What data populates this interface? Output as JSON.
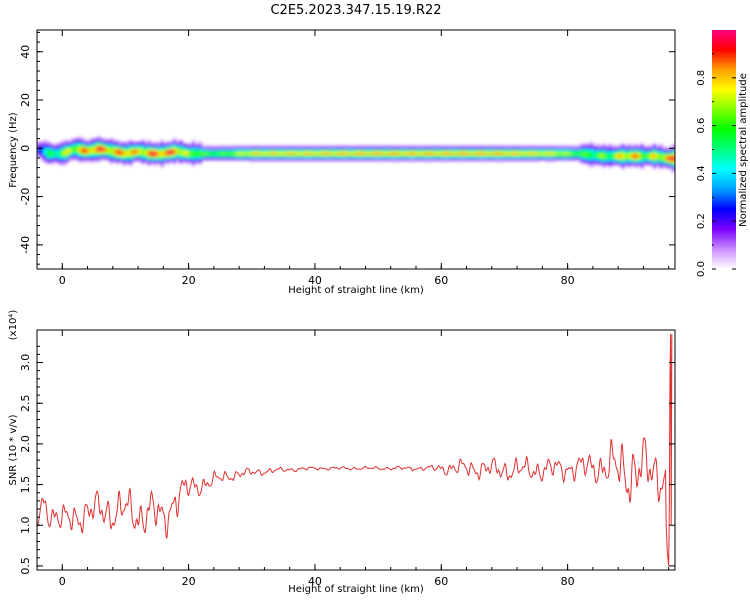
{
  "chart_data": [
    {
      "type": "heatmap",
      "title": "C2E5.2023.347.15.19.R22",
      "xlabel": "Height of straight line (km)",
      "ylabel": "Frequency (Hz)",
      "xlim": [
        -4,
        97
      ],
      "ylim": [
        -50,
        49
      ],
      "x_ticks": [
        0,
        20,
        40,
        60,
        80
      ],
      "y_ticks": [
        -40,
        -20,
        0,
        20,
        40
      ],
      "x_tick_labels": [
        "0",
        "20",
        "40",
        "60",
        "80"
      ],
      "y_tick_labels": [
        "-40",
        "-20",
        "0",
        "20",
        "40"
      ],
      "colorbar": {
        "label": "Normalized spectral amplitude",
        "range": [
          0,
          1
        ],
        "ticks": [
          0.0,
          0.2,
          0.4,
          0.6,
          0.8
        ],
        "tick_labels": [
          "0.0",
          "0.2",
          "0.4",
          "0.6",
          "0.8"
        ],
        "colormap": [
          "#ffffff",
          "#c98cff",
          "#7a00ff",
          "#0000ff",
          "#00a0ff",
          "#00ffff",
          "#00ff80",
          "#00ff00",
          "#80ff00",
          "#ffff00",
          "#ffa000",
          "#ff0000",
          "#ff0080"
        ]
      },
      "ridge": {
        "x": [
          -4,
          -2,
          0,
          2,
          4,
          6,
          8,
          10,
          12,
          14,
          16,
          18,
          20,
          25,
          30,
          40,
          50,
          60,
          70,
          78,
          82,
          86,
          88,
          90,
          92,
          94,
          96
        ],
        "freq": [
          0,
          -2,
          -2,
          0,
          -1,
          0,
          -1,
          -2,
          -1,
          -2,
          -2,
          -1,
          -2,
          -2,
          -2,
          -2,
          -2,
          -2,
          -2,
          -2,
          -2,
          -3,
          -3,
          -3,
          -3,
          -3,
          -4
        ],
        "peak": [
          0.35,
          0.5,
          0.65,
          0.75,
          0.85,
          0.92,
          0.8,
          0.9,
          0.75,
          0.9,
          0.9,
          0.88,
          0.65,
          0.6,
          0.78,
          0.8,
          0.82,
          0.82,
          0.82,
          0.75,
          0.62,
          0.6,
          0.72,
          0.85,
          0.7,
          0.72,
          0.88
        ]
      }
    },
    {
      "type": "line",
      "title": "",
      "xlabel": "Height of straight line (km)",
      "ylabel": "SNR (10 * v/v)",
      "yscale_note": "(x10⁴)",
      "xlim": [
        -4,
        97
      ],
      "ylim": [
        0.45,
        3.4
      ],
      "x_ticks": [
        0,
        20,
        40,
        60,
        80
      ],
      "y_ticks": [
        0.5,
        1.0,
        1.5,
        2.0,
        2.5,
        3.0
      ],
      "x_tick_labels": [
        "0",
        "20",
        "40",
        "60",
        "80"
      ],
      "y_tick_labels": [
        "0.5",
        "1.0",
        "1.5",
        "2.0",
        "2.5",
        "3.0"
      ],
      "series": [
        {
          "color": "#e03030",
          "trend_x": [
            -4,
            -3,
            -2,
            0,
            2,
            4,
            6,
            8,
            10,
            12,
            14,
            16,
            18,
            20,
            22,
            24,
            26,
            28,
            30,
            35,
            40,
            45,
            50,
            55,
            60,
            65,
            70,
            75,
            80,
            85,
            88,
            90,
            92,
            94,
            95.5
          ],
          "trend_y": [
            1.05,
            1.3,
            1.15,
            1.05,
            1.1,
            1.15,
            1.2,
            1.15,
            1.2,
            1.1,
            1.2,
            1.05,
            1.35,
            1.45,
            1.5,
            1.55,
            1.6,
            1.63,
            1.65,
            1.68,
            1.7,
            1.7,
            1.7,
            1.7,
            1.7,
            1.7,
            1.68,
            1.68,
            1.7,
            1.72,
            1.7,
            1.65,
            1.7,
            1.65,
            1.6
          ],
          "amp_x": [
            -4,
            0,
            10,
            18,
            20,
            25,
            30,
            35,
            40,
            50,
            58,
            62,
            70,
            80,
            85,
            88,
            90,
            95.5
          ],
          "amp_y": [
            0.15,
            0.18,
            0.25,
            0.25,
            0.15,
            0.08,
            0.05,
            0.03,
            0.02,
            0.02,
            0.03,
            0.1,
            0.14,
            0.14,
            0.2,
            0.35,
            0.4,
            0.3
          ],
          "tail_x": [
            95.6,
            95.8,
            96.0,
            96.1,
            96.2,
            96.3,
            96.4,
            96.5
          ],
          "tail_y": [
            1.0,
            0.65,
            0.5,
            1.2,
            2.8,
            3.35,
            1.0,
            3.35
          ]
        }
      ]
    }
  ]
}
